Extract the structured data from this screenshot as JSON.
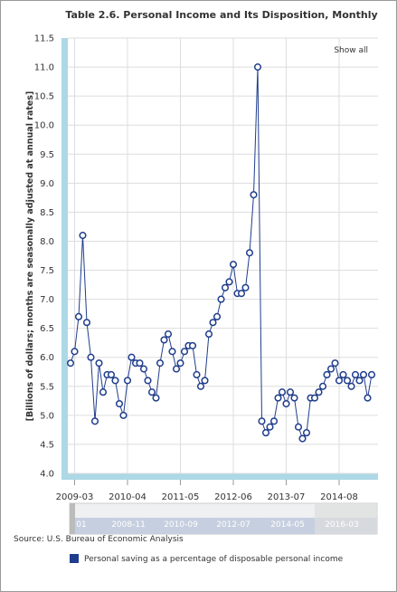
{
  "chart_data": {
    "type": "line",
    "title": "Table 2.6. Personal Income and Its Disposition, Monthly",
    "y_label": "[Billions of dollars; months are seasonally adjusted at annual rates]",
    "show_all": "Show all",
    "source": "Source: U.S. Bureau of Economic Analysis",
    "navigator_labels": [
      "01",
      "2008-11",
      "2010-09",
      "2012-07",
      "2014-05",
      "2016-03"
    ],
    "categories": [
      null,
      "2009-03",
      null,
      null,
      null,
      null,
      null,
      null,
      null,
      null,
      null,
      null,
      null,
      null,
      "2010-04",
      null,
      null,
      null,
      null,
      null,
      null,
      null,
      null,
      null,
      null,
      null,
      null,
      "2011-05",
      null,
      null,
      null,
      null,
      null,
      null,
      null,
      null,
      null,
      null,
      null,
      null,
      "2012-06",
      null,
      null,
      null,
      null,
      null,
      null,
      null,
      null,
      null,
      null,
      null,
      null,
      "2013-07",
      null,
      null,
      null,
      null,
      null,
      null,
      null,
      null,
      null,
      null,
      null,
      null,
      "2014-08",
      null,
      null,
      null,
      null,
      null,
      null,
      null,
      null
    ],
    "series": [
      {
        "name": "Personal saving as a percentage of disposable personal income",
        "color": "#1f3d8c",
        "values": [
          5.9,
          6.1,
          6.7,
          8.1,
          6.6,
          6.0,
          4.9,
          5.9,
          5.4,
          5.7,
          5.7,
          5.6,
          5.2,
          5.0,
          5.6,
          6.0,
          5.9,
          5.9,
          5.8,
          5.6,
          5.4,
          5.3,
          5.9,
          6.3,
          6.4,
          6.1,
          5.8,
          5.9,
          6.1,
          6.2,
          6.2,
          5.7,
          5.5,
          5.6,
          6.4,
          6.6,
          6.7,
          7.0,
          7.2,
          7.3,
          7.6,
          7.1,
          7.1,
          7.2,
          7.8,
          8.8,
          11.0,
          4.9,
          4.7,
          4.8,
          4.9,
          5.3,
          5.4,
          5.2,
          5.4,
          5.3,
          4.8,
          4.6,
          4.7,
          5.3,
          5.3,
          5.4,
          5.5,
          5.7,
          5.8,
          5.9,
          5.6,
          5.7,
          5.6,
          5.5,
          5.7,
          5.6,
          5.7,
          5.3,
          5.7
        ]
      }
    ],
    "ylim": [
      4,
      11.5
    ],
    "yticks": [
      {
        "value": 4,
        "label": "4.0"
      },
      4.5,
      {
        "value": 5,
        "label": "5.0"
      },
      5.5,
      {
        "value": 6,
        "label": "6.0"
      },
      6.5,
      {
        "value": 7,
        "label": "7.0"
      },
      7.5,
      {
        "value": 8,
        "label": "8.0"
      },
      8.5,
      {
        "value": 9,
        "label": "9.0"
      },
      9.5,
      {
        "value": 10,
        "label": "10.0"
      },
      10.5,
      {
        "value": 11,
        "label": "11.0"
      },
      11.5
    ],
    "grid": true
  }
}
